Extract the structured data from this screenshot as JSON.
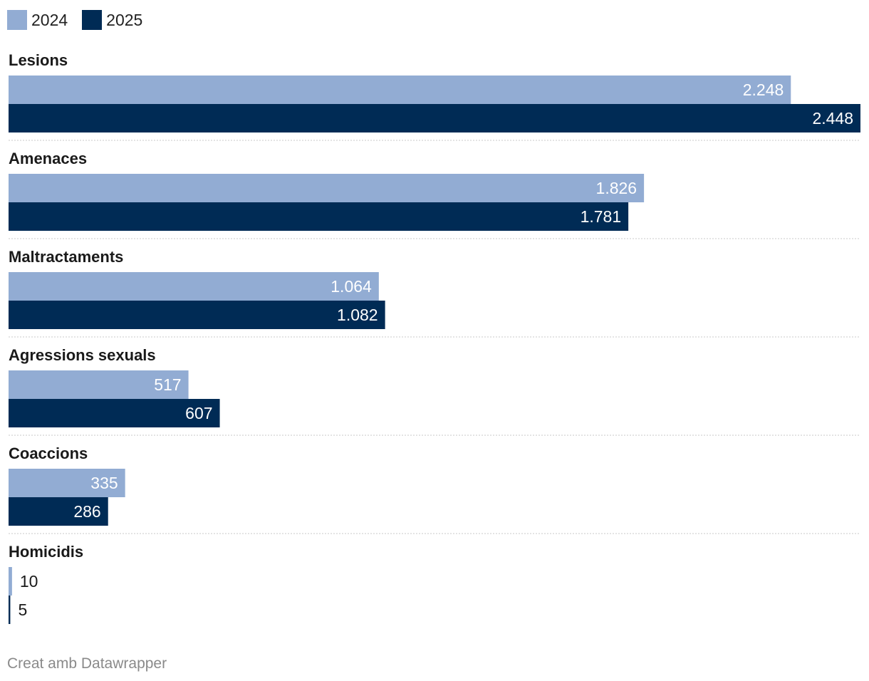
{
  "chart_data": {
    "type": "bar",
    "orientation": "horizontal",
    "categories": [
      "Lesions",
      "Amenaces",
      "Maltractaments",
      "Agressions sexuals",
      "Coaccions",
      "Homicidis"
    ],
    "series": [
      {
        "name": "2024",
        "color": "#92acd3",
        "values": [
          2248,
          1826,
          1064,
          517,
          335,
          10
        ],
        "labels": [
          "2.248",
          "1.826",
          "1.064",
          "517",
          "335",
          "10"
        ]
      },
      {
        "name": "2025",
        "color": "#002b55",
        "values": [
          2448,
          1781,
          1082,
          607,
          286,
          5
        ],
        "labels": [
          "2.448",
          "1.781",
          "1.082",
          "607",
          "286",
          "5"
        ]
      }
    ],
    "xlim": [
      0,
      2448
    ],
    "legend_position": "top-left",
    "grid": false
  },
  "footer": {
    "credit": "Creat amb Datawrapper"
  }
}
